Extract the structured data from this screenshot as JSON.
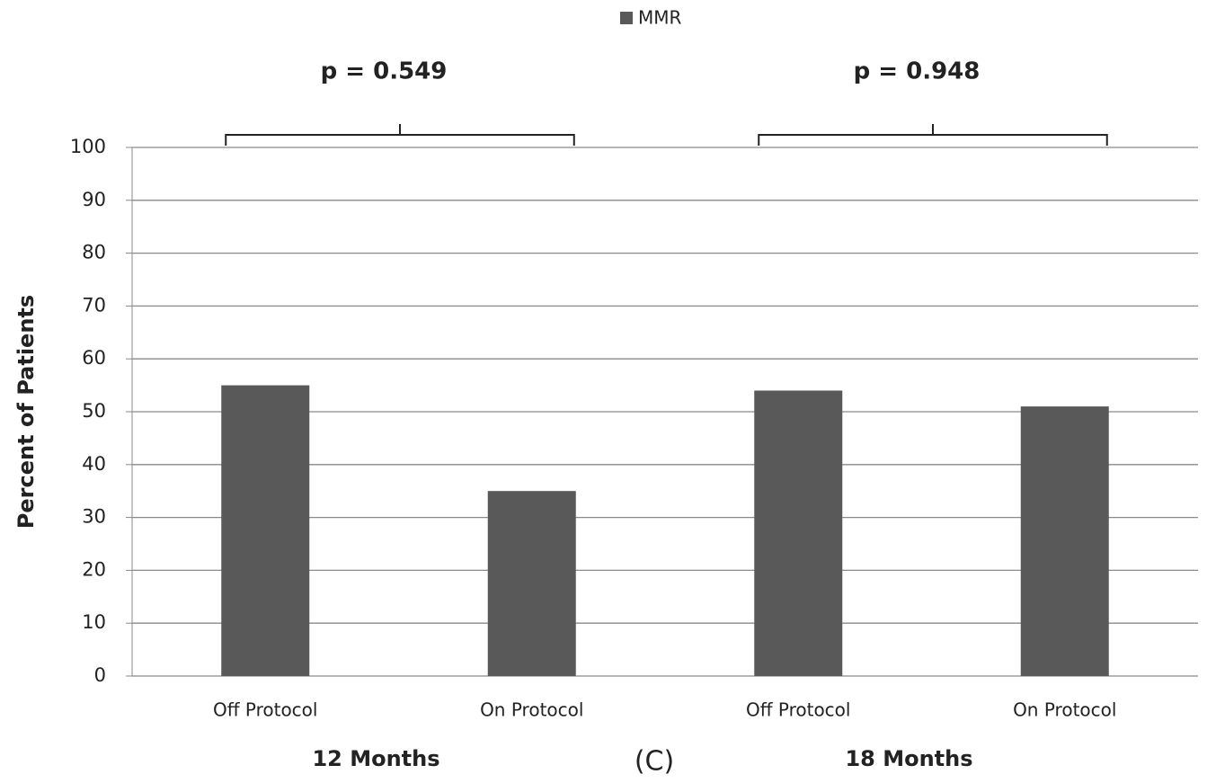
{
  "chart_data": {
    "type": "bar",
    "categories": [
      "Off Protocol",
      "On Protocol",
      "Off Protocol",
      "On Protocol"
    ],
    "groups": [
      "12 Months",
      "18 Months"
    ],
    "annotations": [
      "p = 0.549",
      "p = 0.948"
    ],
    "panel_label": "(C)",
    "y_label": "Percent of Patients",
    "series": [
      {
        "name": "MMR",
        "color": "#595959",
        "values": [
          55,
          35,
          54,
          51
        ]
      }
    ],
    "ylim": [
      0,
      100
    ],
    "yticks": [
      0,
      10,
      20,
      30,
      40,
      50,
      60,
      70,
      80,
      90,
      100
    ],
    "grid": true,
    "legend": "top"
  }
}
